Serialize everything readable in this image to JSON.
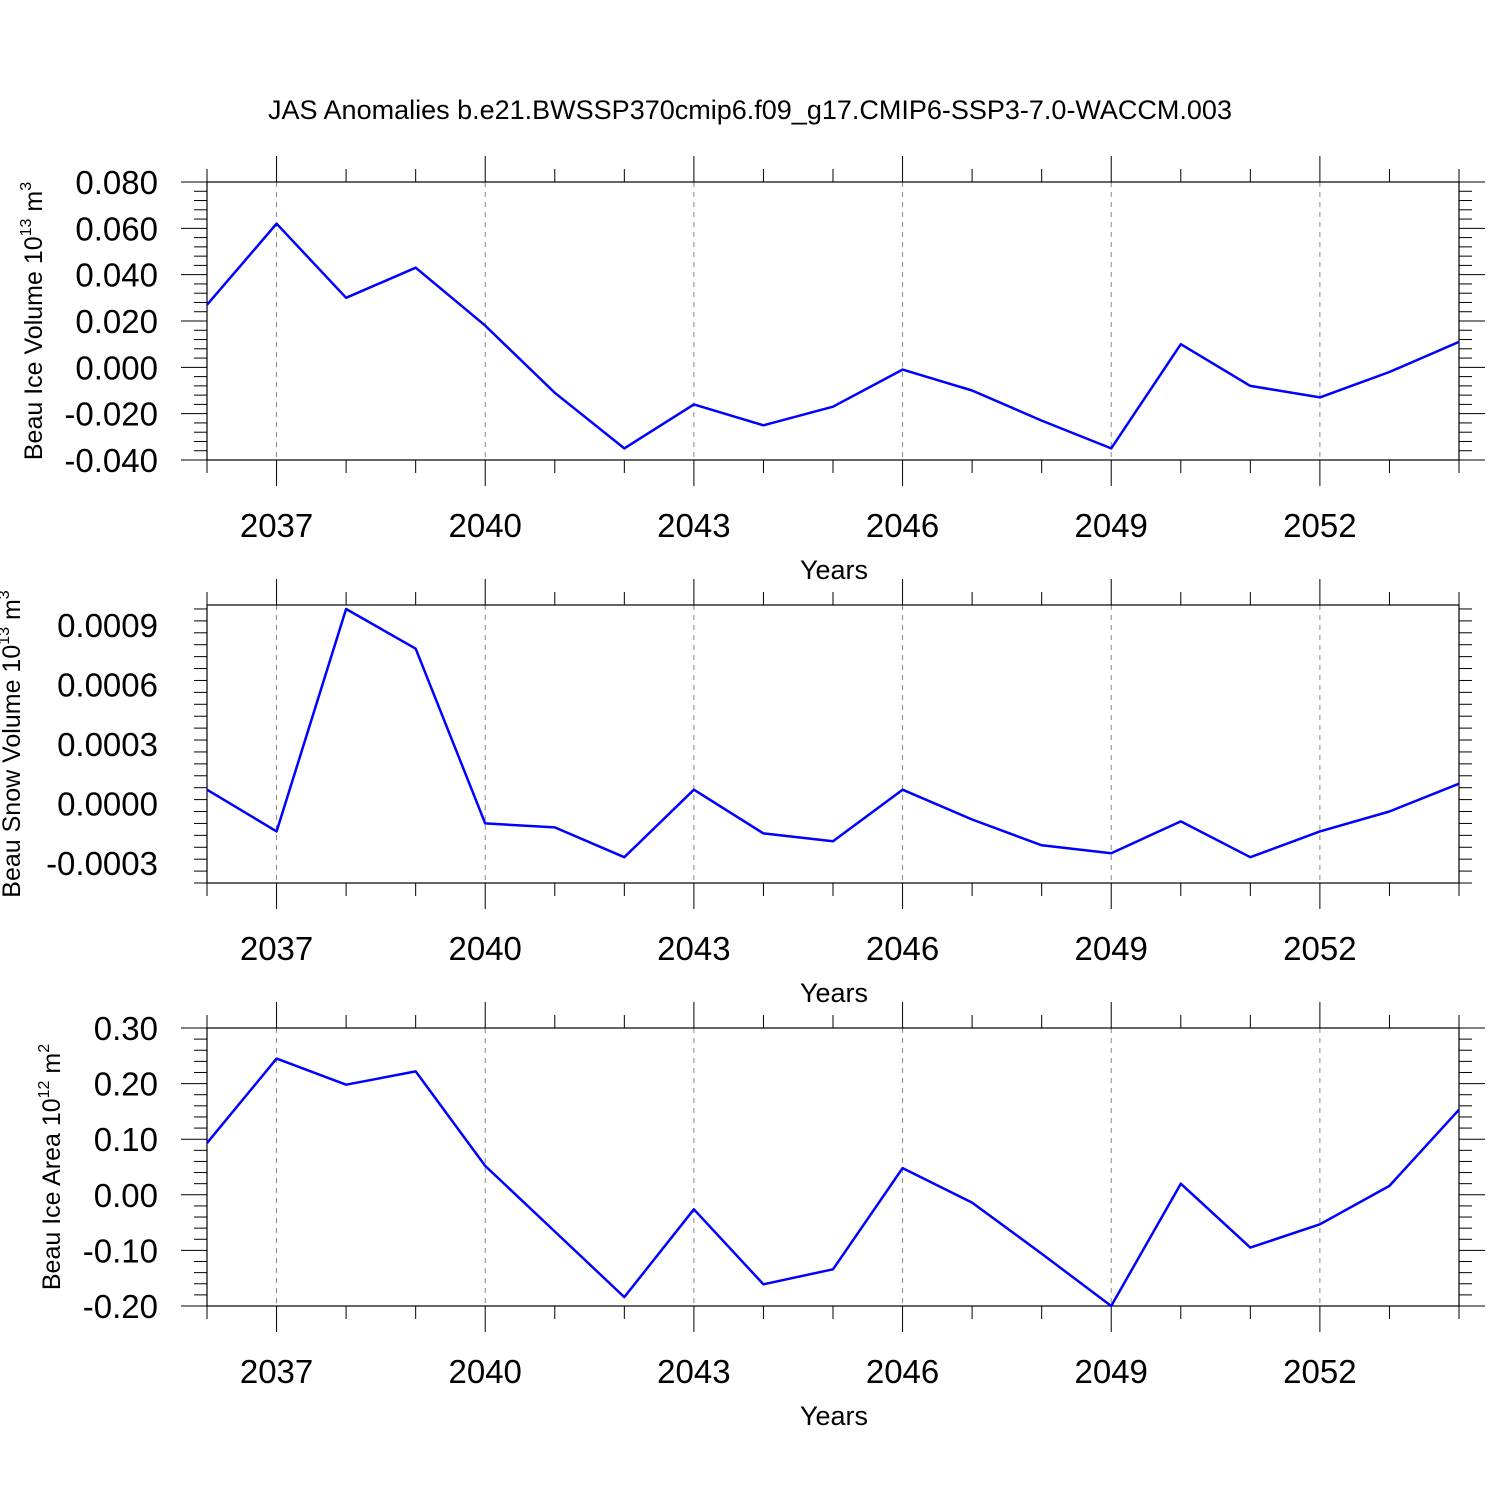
{
  "title": "JAS Anomalies b.e21.BWSSP370cmip6.f09_g17.CMIP6-SSP3-7.0-WACCM.003",
  "colors": {
    "line": "#0000ff",
    "axis": "#000000",
    "grid": "#888888"
  },
  "chart_data": [
    {
      "type": "line",
      "xlabel": "Years",
      "ylabel": {
        "text": "Beau Ice Volume 10",
        "exp": "13",
        "unit": " m",
        "unit_exp": "3"
      },
      "xlim": [
        2036,
        2054
      ],
      "ylim": [
        -0.04,
        0.08
      ],
      "x_ticks": [
        2037,
        2040,
        2043,
        2046,
        2049,
        2052
      ],
      "y_ticks": [
        -0.04,
        -0.02,
        0.0,
        0.02,
        0.04,
        0.06,
        0.08
      ],
      "y_tick_labels": [
        "-0.040",
        "-0.020",
        "0.000",
        "0.020",
        "0.040",
        "0.060",
        "0.080"
      ],
      "grid": "x-dashed",
      "x": [
        2036,
        2037,
        2038,
        2039,
        2040,
        2041,
        2042,
        2043,
        2044,
        2045,
        2046,
        2047,
        2048,
        2049,
        2050,
        2051,
        2052,
        2053,
        2054
      ],
      "values": [
        0.027,
        0.062,
        0.03,
        0.043,
        0.018,
        -0.011,
        -0.035,
        -0.016,
        -0.025,
        -0.017,
        -0.001,
        -0.01,
        -0.023,
        -0.035,
        0.01,
        -0.008,
        -0.013,
        -0.002,
        0.011
      ]
    },
    {
      "type": "line",
      "xlabel": "Years",
      "ylabel": {
        "text": "Beau Snow Volume 10",
        "exp": "13",
        "unit": " m",
        "unit_exp": "3"
      },
      "xlim": [
        2036,
        2054
      ],
      "ylim": [
        -0.0004,
        0.001
      ],
      "x_ticks": [
        2037,
        2040,
        2043,
        2046,
        2049,
        2052
      ],
      "y_ticks": [
        -0.0003,
        0.0,
        0.0003,
        0.0006,
        0.0009
      ],
      "y_tick_labels": [
        "-0.0003",
        "0.0000",
        "0.0003",
        "0.0006",
        "0.0009"
      ],
      "grid": "x-dashed",
      "x": [
        2036,
        2037,
        2038,
        2039,
        2040,
        2041,
        2042,
        2043,
        2044,
        2045,
        2046,
        2047,
        2048,
        2049,
        2050,
        2051,
        2052,
        2053,
        2054
      ],
      "values": [
        7e-05,
        -0.00014,
        0.00098,
        0.00078,
        -0.0001,
        -0.00012,
        -0.00027,
        7e-05,
        -0.00015,
        -0.00019,
        7e-05,
        -8e-05,
        -0.00021,
        -0.00025,
        -9e-05,
        -0.00027,
        -0.00014,
        -4e-05,
        0.0001
      ]
    },
    {
      "type": "line",
      "xlabel": "Years",
      "ylabel": {
        "text": "Beau Ice Area 10",
        "exp": "12",
        "unit": " m",
        "unit_exp": "2"
      },
      "xlim": [
        2036,
        2054
      ],
      "ylim": [
        -0.2,
        0.3
      ],
      "x_ticks": [
        2037,
        2040,
        2043,
        2046,
        2049,
        2052
      ],
      "y_ticks": [
        -0.2,
        -0.1,
        0.0,
        0.1,
        0.2,
        0.3
      ],
      "y_tick_labels": [
        "-0.20",
        "-0.10",
        "0.00",
        "0.10",
        "0.20",
        "0.30"
      ],
      "grid": "x-dashed",
      "x": [
        2036,
        2037,
        2038,
        2039,
        2040,
        2041,
        2042,
        2043,
        2044,
        2045,
        2046,
        2047,
        2048,
        2049,
        2050,
        2051,
        2052,
        2053,
        2054
      ],
      "values": [
        0.093,
        0.245,
        0.198,
        0.222,
        0.052,
        -0.066,
        -0.184,
        -0.026,
        -0.161,
        -0.134,
        0.048,
        -0.014,
        -0.106,
        -0.2,
        0.02,
        -0.095,
        -0.053,
        0.016,
        0.153
      ]
    }
  ]
}
